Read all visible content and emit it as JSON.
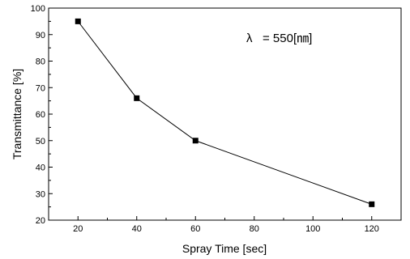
{
  "chart_data": {
    "type": "line",
    "title": "",
    "xlabel": "Spray Time [sec]",
    "ylabel": "Transmittance [%]",
    "xlim": [
      10,
      130
    ],
    "ylim": [
      20,
      100
    ],
    "xticks": [
      20,
      40,
      60,
      80,
      100,
      120
    ],
    "yticks": [
      20,
      30,
      40,
      50,
      60,
      70,
      80,
      90,
      100
    ],
    "grid": false,
    "legend": "none",
    "annotation": {
      "prefix": "λ",
      "text": "= 550[㎚]"
    },
    "series": [
      {
        "x": [
          20,
          40,
          60,
          120
        ],
        "y": [
          95,
          66,
          50,
          26
        ],
        "marker": "square",
        "color": "#000000"
      }
    ]
  }
}
